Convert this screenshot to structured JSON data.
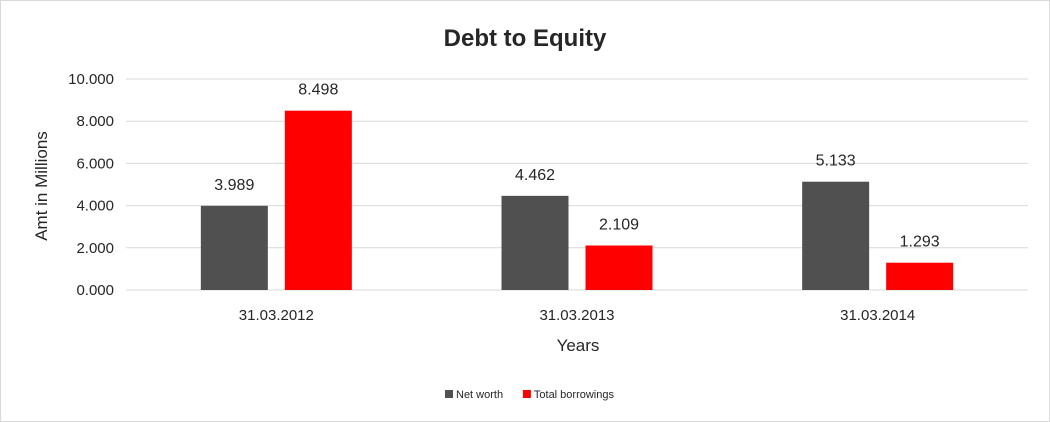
{
  "chart_data": {
    "type": "bar",
    "title": "Debt to Equity",
    "xlabel": "Years",
    "ylabel": "Amt in Millions",
    "categories": [
      "31.03.2012",
      "31.03.2013",
      "31.03.2014"
    ],
    "series": [
      {
        "name": "Net worth",
        "values": [
          3.989,
          4.462,
          5.133
        ],
        "color": "#505050"
      },
      {
        "name": "Total borrowings",
        "values": [
          8.498,
          2.109,
          1.293
        ],
        "color": "#ff0000"
      }
    ],
    "ylim": [
      0,
      10
    ],
    "yticks": [
      "0.000",
      "2.000",
      "4.000",
      "6.000",
      "8.000",
      "10.000"
    ],
    "data_labels": [
      [
        "3.989",
        "4.462",
        "5.133"
      ],
      [
        "8.498",
        "2.109",
        "1.293"
      ]
    ],
    "grid": true,
    "legend_position": "bottom"
  }
}
